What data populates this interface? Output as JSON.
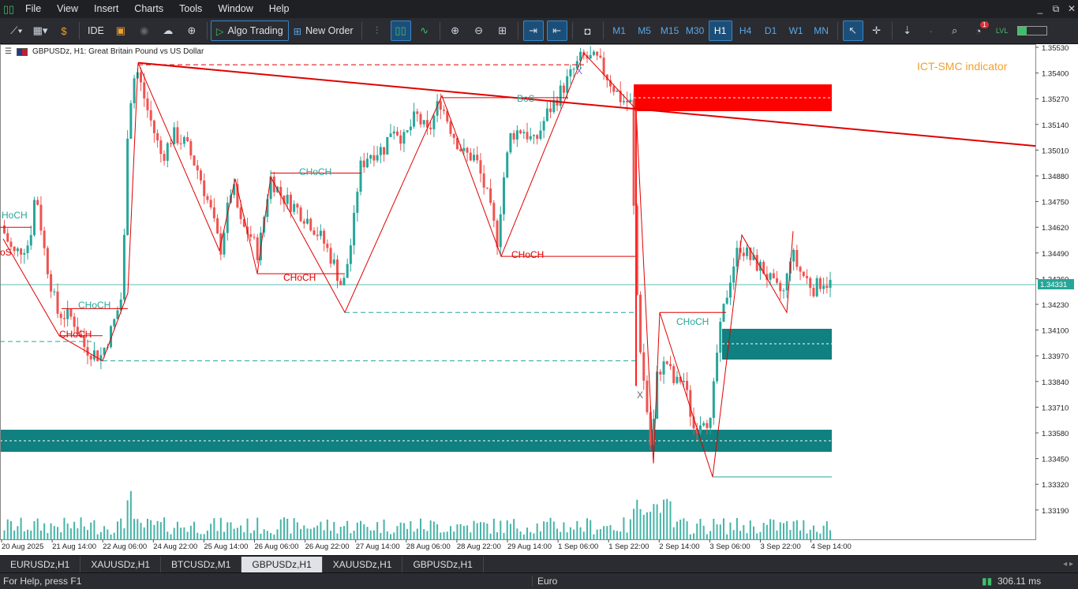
{
  "menu": {
    "items": [
      "File",
      "View",
      "Insert",
      "Charts",
      "Tools",
      "Window",
      "Help"
    ],
    "app_icon": "terminal-icon",
    "window_controls": [
      "minimize-icon",
      "restore-icon",
      "close-icon"
    ]
  },
  "toolbar": {
    "ide_label": "IDE",
    "algo_trading_label": "Algo Trading",
    "new_order_label": "New Order",
    "timeframes": [
      "M1",
      "M5",
      "M15",
      "M30",
      "H1",
      "H4",
      "D1",
      "W1",
      "MN"
    ],
    "active_timeframe": "H1",
    "notification_count": "1"
  },
  "chart": {
    "title": "GBPUSDz, H1:  Great Britain Pound vs US Dollar",
    "indicator_label": "ICT-SMC indicator",
    "current_price": "1.34331",
    "price_axis": [
      "1.35530",
      "1.35400",
      "1.35270",
      "1.35140",
      "1.35010",
      "1.34880",
      "1.34750",
      "1.34620",
      "1.34490",
      "1.34360",
      "1.34230",
      "1.34100",
      "1.33970",
      "1.33840",
      "1.33710",
      "1.33580",
      "1.33450",
      "1.33320",
      "1.33190"
    ],
    "time_axis": [
      "20 Aug 2025",
      "21 Aug 14:00",
      "22 Aug 06:00",
      "24 Aug 22:00",
      "25 Aug 14:00",
      "26 Aug 06:00",
      "26 Aug 22:00",
      "27 Aug 14:00",
      "28 Aug 06:00",
      "28 Aug 22:00",
      "29 Aug 14:00",
      "1 Sep 06:00",
      "1 Sep 22:00",
      "2 Sep 14:00",
      "3 Sep 06:00",
      "3 Sep 22:00",
      "4 Sep 14:00"
    ],
    "labels": {
      "choch_1": "CHoCH",
      "choch_2": "CHoCH",
      "choch_3": "CHoCH",
      "choch_4": "CHoCH",
      "choch_5": "CHoCH",
      "choch_6": "CHoCH",
      "choch_7": "CHoCH",
      "bos_1": "BoS",
      "bos_edge": "oS",
      "choch_edge": "HoCH",
      "x_mark_1": "X",
      "x_mark_2": "X"
    },
    "colors": {
      "bull": "#26a69a",
      "bear": "#ef5350",
      "supply_zone": "#ff0000",
      "demand_zone": "#108080",
      "structure_line": "#e00000",
      "indicator_label": "#f0a030"
    }
  },
  "tabs": [
    {
      "label": "EURUSDz,H1",
      "active": false
    },
    {
      "label": "XAUUSDz,H1",
      "active": false
    },
    {
      "label": "BTCUSDz,M1",
      "active": false
    },
    {
      "label": "GBPUSDz,H1",
      "active": true
    },
    {
      "label": "XAUUSDz,H1",
      "active": false
    },
    {
      "label": "GBPUSDz,H1",
      "active": false
    }
  ],
  "status": {
    "help_text": "For Help, press F1",
    "profile": "Euro",
    "traffic": "306.11 ms"
  }
}
